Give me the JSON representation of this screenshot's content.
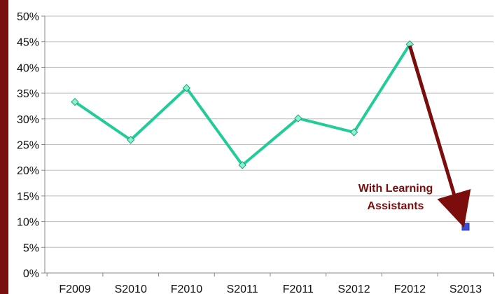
{
  "chart_data": {
    "type": "line",
    "categories": [
      "F2009",
      "S2010",
      "F2010",
      "S2011",
      "F2011",
      "S2012",
      "F2012",
      "S2013"
    ],
    "series": [
      {
        "values": [
          33.3,
          25.9,
          36.0,
          21.0,
          30.1,
          27.4,
          44.5,
          null
        ],
        "color": "#22cc99",
        "marker": "diamond"
      },
      {
        "values": [
          null,
          null,
          null,
          null,
          null,
          null,
          null,
          9.0
        ],
        "color": "#3a4fd6",
        "marker": "square"
      }
    ],
    "ylim": [
      0,
      50
    ],
    "yticks": [
      "0%",
      "5%",
      "10%",
      "15%",
      "20%",
      "25%",
      "30%",
      "35%",
      "40%",
      "45%",
      "50%"
    ],
    "grid": true,
    "annotation": {
      "lines": [
        "With Learning",
        "Assistants"
      ],
      "arrow_from_category": "F2012",
      "arrow_to_category": "S2013",
      "color": "#7b0d0d"
    }
  }
}
